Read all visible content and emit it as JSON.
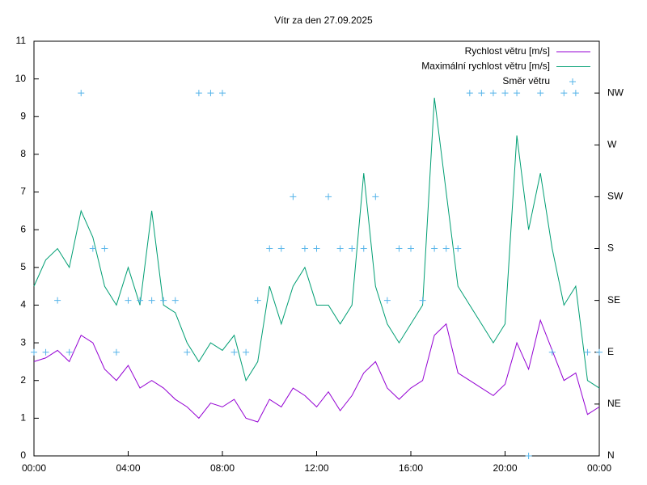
{
  "chart_data": {
    "type": "line",
    "title": "Vítr za den 27.09.2025",
    "x": [
      0,
      0.5,
      1,
      1.5,
      2,
      2.5,
      3,
      3.5,
      4,
      4.5,
      5,
      5.5,
      6,
      6.5,
      7,
      7.5,
      8,
      8.5,
      9,
      9.5,
      10,
      10.5,
      11,
      11.5,
      12,
      12.5,
      13,
      13.5,
      14,
      14.5,
      15,
      15.5,
      16,
      16.5,
      17,
      17.5,
      18,
      18.5,
      19,
      19.5,
      20,
      20.5,
      21,
      21.5,
      22,
      22.5,
      23,
      23.5,
      24
    ],
    "xlim": [
      0,
      24
    ],
    "xticks": [
      {
        "value": 0,
        "label": "00:00"
      },
      {
        "value": 4,
        "label": "04:00"
      },
      {
        "value": 8,
        "label": "08:00"
      },
      {
        "value": 12,
        "label": "12:00"
      },
      {
        "value": 16,
        "label": "16:00"
      },
      {
        "value": 20,
        "label": "20:00"
      },
      {
        "value": 24,
        "label": "00:00"
      }
    ],
    "ylim": [
      0,
      11
    ],
    "yticks": [
      0,
      1,
      2,
      3,
      4,
      5,
      6,
      7,
      8,
      9,
      10,
      11
    ],
    "y2lim": [
      0,
      360
    ],
    "y2ticks": [
      {
        "value": 0,
        "label": "N"
      },
      {
        "value": 45,
        "label": "NE"
      },
      {
        "value": 90,
        "label": "E"
      },
      {
        "value": 135,
        "label": "SE"
      },
      {
        "value": 180,
        "label": "S"
      },
      {
        "value": 225,
        "label": "SW"
      },
      {
        "value": 270,
        "label": "W"
      },
      {
        "value": 315,
        "label": "NW"
      }
    ],
    "legend": "top-right",
    "series": [
      {
        "name": "Rychlost větru [m/s]",
        "color": "#9400d3",
        "type": "line",
        "values": [
          2.5,
          2.6,
          2.8,
          2.5,
          3.2,
          3.0,
          2.3,
          2.0,
          2.4,
          1.8,
          2.0,
          1.8,
          1.5,
          1.3,
          1.0,
          1.4,
          1.3,
          1.5,
          1.0,
          0.9,
          1.5,
          1.3,
          1.8,
          1.6,
          1.3,
          1.7,
          1.2,
          1.6,
          2.2,
          2.5,
          1.8,
          1.5,
          1.8,
          2.0,
          3.2,
          3.5,
          2.2,
          2.0,
          1.8,
          1.6,
          1.9,
          3.0,
          2.3,
          3.6,
          2.8,
          2.0,
          2.2,
          1.1,
          1.3
        ]
      },
      {
        "name": "Maximální rychlost větru [m/s]",
        "color": "#009e73",
        "type": "line",
        "values": [
          4.5,
          5.2,
          5.5,
          5.0,
          6.5,
          5.8,
          4.5,
          4.0,
          5.0,
          4.0,
          6.5,
          4.0,
          3.8,
          3.0,
          2.5,
          3.0,
          2.8,
          3.2,
          2.0,
          2.5,
          4.5,
          3.5,
          4.5,
          5.0,
          4.0,
          4.0,
          3.5,
          4.0,
          7.5,
          4.5,
          3.5,
          3.0,
          3.5,
          4.0,
          9.5,
          7.0,
          4.5,
          4.0,
          3.5,
          3.0,
          3.5,
          8.5,
          6.0,
          7.5,
          5.5,
          4.0,
          4.5,
          2.0,
          1.8
        ]
      },
      {
        "name": "Směr větru",
        "color": "#56b4e9",
        "type": "scatter",
        "axis": "y2",
        "values": [
          90,
          90,
          135,
          90,
          315,
          180,
          180,
          90,
          135,
          135,
          135,
          135,
          135,
          90,
          315,
          315,
          315,
          90,
          90,
          135,
          180,
          180,
          225,
          180,
          180,
          225,
          180,
          180,
          180,
          225,
          135,
          180,
          180,
          135,
          180,
          180,
          180,
          315,
          315,
          315,
          315,
          315,
          0,
          315,
          90,
          315,
          315,
          90,
          90
        ]
      }
    ]
  }
}
